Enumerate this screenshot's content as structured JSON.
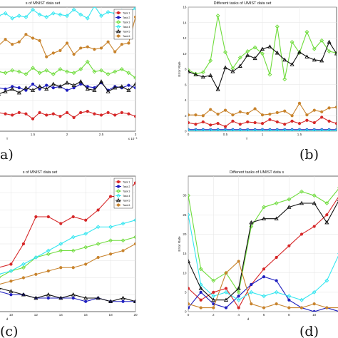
{
  "figure": {
    "panel_labels": [
      "a)",
      "(b)",
      "(c)",
      "(d)"
    ],
    "legend_labels": [
      "Task 1",
      "Task 2",
      "Task 3",
      "Task 4",
      "Task 5",
      "Task 6"
    ],
    "colors": {
      "task1": "#d62728",
      "task2": "#1f1fbf",
      "task3": "#6fdc3c",
      "task4": "#33e6f0",
      "task5": "#111111",
      "task6": "#c8832c"
    }
  },
  "chart_data": [
    {
      "type": "line",
      "title": "s of MNIST data set",
      "xlabel": "T",
      "ylabel": "",
      "x_tick_labels": [
        "1.5",
        "2",
        "2.5",
        "3"
      ],
      "x_exponent_label": "x 10⁻³",
      "x": [
        1.0,
        1.1,
        1.2,
        1.3,
        1.4,
        1.5,
        1.6,
        1.7,
        1.8,
        1.9,
        2.0,
        2.1,
        2.2,
        2.3,
        2.4,
        2.5,
        2.6,
        2.7,
        2.8,
        2.9,
        3.0
      ],
      "xlim": [
        1.0,
        3.0
      ],
      "ylim": [
        0,
        10
      ],
      "legend_position": "top-right",
      "series": [
        {
          "name": "Task 1",
          "marker": "circle",
          "values": [
            1.5,
            1.4,
            1.3,
            1.5,
            1.4,
            1.0,
            1.5,
            1.3,
            1.4,
            1.2,
            1.5,
            1.1,
            1.5,
            1.6,
            1.4,
            1.3,
            1.5,
            1.3,
            1.5,
            1.4,
            1.2
          ]
        },
        {
          "name": "Task 2",
          "marker": "circle",
          "values": [
            3.5,
            3.4,
            3.6,
            3.5,
            3.3,
            3.8,
            3.4,
            3.7,
            3.5,
            3.6,
            3.3,
            3.5,
            3.8,
            3.6,
            3.5,
            3.9,
            3.3,
            3.6,
            3.5,
            3.7,
            3.5
          ]
        },
        {
          "name": "Task 3",
          "marker": "diamond",
          "values": [
            4.8,
            4.7,
            4.9,
            4.8,
            4.6,
            5.1,
            4.7,
            4.9,
            4.6,
            5.0,
            4.8,
            4.7,
            5.0,
            5.6,
            4.8,
            4.9,
            4.6,
            4.8,
            5.0,
            4.7,
            4.3
          ]
        },
        {
          "name": "Task 4",
          "marker": "diamond",
          "values": [
            9.3,
            9.5,
            9.1,
            9.3,
            9.2,
            9.8,
            9.4,
            9.2,
            9.5,
            9.4,
            9.3,
            9.8,
            9.4,
            9.1,
            10.1,
            9.3,
            9.6,
            9.5,
            9.7,
            9.6,
            9.9
          ]
        },
        {
          "name": "Task 5",
          "marker": "triangle",
          "values": [
            3.0,
            3.2,
            3.4,
            3.1,
            3.5,
            3.3,
            3.6,
            3.4,
            3.8,
            3.6,
            3.9,
            3.7,
            4.0,
            3.4,
            3.3,
            4.0,
            3.2,
            3.5,
            3.6,
            3.3,
            3.8
          ]
        },
        {
          "name": "Task 6",
          "marker": "circle",
          "values": [
            6.9,
            7.4,
            7.0,
            7.2,
            7.8,
            7.5,
            7.3,
            6.0,
            6.3,
            6.5,
            7.1,
            6.2,
            6.7,
            6.8,
            6.6,
            6.7,
            7.2,
            6.4,
            7.0,
            7.1,
            9.2
          ]
        }
      ]
    },
    {
      "type": "line",
      "title": "Different tasks of UMIST data set",
      "xlabel": "T",
      "ylabel": "Error Rate",
      "x_tick_labels": [
        "0",
        "0.5",
        "1",
        "1.5"
      ],
      "y_tick_labels": [
        "0",
        "2",
        "4",
        "6",
        "8",
        "10",
        "12",
        "14",
        "16"
      ],
      "x": [
        0,
        0.1,
        0.2,
        0.3,
        0.4,
        0.5,
        0.6,
        0.7,
        0.8,
        0.9,
        1.0,
        1.1,
        1.2,
        1.3,
        1.4,
        1.5,
        1.6,
        1.7,
        1.8,
        1.9,
        2.0
      ],
      "xlim": [
        0,
        2.0
      ],
      "ylim": [
        0,
        16
      ],
      "series": [
        {
          "name": "Task 1",
          "marker": "circle",
          "values": [
            1.1,
            0.9,
            1.2,
            0.8,
            1.0,
            0.6,
            1.3,
            0.9,
            1.2,
            1.1,
            1.0,
            1.5,
            1.2,
            0.9,
            1.3,
            1.0,
            1.4,
            1.1,
            1.8,
            1.3,
            1.0
          ]
        },
        {
          "name": "Task 2",
          "marker": "circle",
          "values": [
            0.2,
            0.2,
            0.2,
            0.2,
            0.2,
            0.2,
            0.2,
            0.2,
            0.2,
            0.2,
            0.2,
            0.2,
            0.2,
            0.2,
            0.2,
            0.2,
            0.2,
            0.2,
            0.2,
            0.2,
            0.2
          ]
        },
        {
          "name": "Task 3",
          "marker": "diamond",
          "values": [
            7.9,
            7.4,
            7.6,
            9.1,
            14.9,
            10.2,
            8.1,
            9.5,
            10.3,
            10.8,
            10.0,
            7.3,
            13.5,
            6.7,
            11.5,
            10.1,
            12.8,
            10.6,
            11.7,
            10.3,
            10.1
          ]
        },
        {
          "name": "Task 4",
          "marker": "diamond",
          "values": [
            0.1,
            0.1,
            0.1,
            0.1,
            0.1,
            0.1,
            0.1,
            0.1,
            0.1,
            0.1,
            0.1,
            0.1,
            0.1,
            0.1,
            0.1,
            0.1,
            0.1,
            0.1,
            0.1,
            0.1,
            0.1
          ]
        },
        {
          "name": "Task 5",
          "marker": "triangle",
          "values": [
            7.7,
            7.3,
            7.0,
            7.2,
            5.4,
            8.2,
            7.7,
            8.4,
            9.8,
            9.4,
            10.6,
            10.9,
            10.1,
            9.2,
            8.6,
            10.2,
            9.6,
            9.2,
            9.1,
            11.5,
            10.0
          ]
        },
        {
          "name": "Task 6",
          "marker": "circle",
          "values": [
            2.1,
            2.1,
            2.0,
            2.8,
            2.2,
            2.7,
            2.1,
            2.5,
            2.3,
            2.9,
            2.1,
            2.2,
            2.4,
            2.6,
            2.0,
            3.6,
            2.1,
            2.7,
            2.5,
            3.0,
            3.1
          ]
        }
      ]
    },
    {
      "type": "line",
      "title": "s of MNIST data set",
      "xlabel": "d",
      "ylabel": "",
      "x_tick_labels": [
        "10",
        "12",
        "14",
        "16",
        "18",
        "20"
      ],
      "x": [
        8,
        9,
        10,
        11,
        12,
        13,
        14,
        15,
        16,
        17,
        18,
        19,
        20
      ],
      "xlim": [
        9,
        20
      ],
      "ylim": [
        0,
        40
      ],
      "legend_position": "top-right",
      "series": [
        {
          "name": "Task 1",
          "marker": "circle",
          "values": [
            13,
            13,
            14,
            20,
            28,
            28,
            26,
            28,
            27,
            30,
            34,
            34,
            38
          ]
        },
        {
          "name": "Task 2",
          "marker": "circle",
          "values": [
            6,
            6,
            5,
            5,
            4,
            4,
            4,
            4,
            3,
            4,
            3,
            3,
            3
          ]
        },
        {
          "name": "Task 3",
          "marker": "diamond",
          "values": [
            9,
            10,
            12,
            13,
            16,
            17,
            18,
            18,
            19,
            20,
            21,
            21,
            22
          ]
        },
        {
          "name": "Task 4",
          "marker": "diamond",
          "values": [
            11,
            11,
            12,
            14,
            16,
            18,
            20,
            22,
            23,
            25,
            25,
            26,
            27
          ]
        },
        {
          "name": "Task 5",
          "marker": "triangle",
          "values": [
            8,
            7,
            6,
            5,
            4,
            5,
            4,
            5,
            4,
            4,
            3,
            4,
            3
          ]
        },
        {
          "name": "Task 6",
          "marker": "circle",
          "values": [
            7,
            8,
            9,
            10,
            11,
            12,
            13,
            13,
            14,
            16,
            17,
            18,
            20
          ]
        }
      ]
    },
    {
      "type": "line",
      "title": "Different tasks of UMIST data s",
      "xlabel": "d",
      "ylabel": "Error Rate",
      "x_tick_labels": [
        "0",
        "2",
        "4",
        "6",
        "8",
        "10"
      ],
      "y_tick_labels": [
        "0",
        "5",
        "10",
        "15",
        "20",
        "25",
        "30"
      ],
      "x": [
        0,
        1,
        2,
        3,
        4,
        5,
        6,
        7,
        8,
        9,
        10,
        11,
        12
      ],
      "xlim": [
        0,
        12
      ],
      "ylim": [
        0,
        35
      ],
      "series": [
        {
          "name": "Task 1",
          "marker": "circle",
          "values": [
            6,
            3,
            5,
            6,
            1,
            7,
            11,
            14,
            17,
            20,
            22,
            25,
            30
          ]
        },
        {
          "name": "Task 2",
          "marker": "circle",
          "values": [
            1,
            5,
            2,
            1,
            4,
            7,
            9,
            8,
            3,
            1,
            0,
            1,
            0
          ]
        },
        {
          "name": "Task 3",
          "marker": "diamond",
          "values": [
            30,
            11,
            8,
            10,
            5,
            22,
            27,
            28,
            29,
            31,
            30,
            28,
            32
          ]
        },
        {
          "name": "Task 4",
          "marker": "diamond",
          "values": [
            25,
            7,
            4,
            5,
            3,
            5,
            4,
            5,
            4,
            3,
            5,
            8,
            15
          ]
        },
        {
          "name": "Task 5",
          "marker": "triangle",
          "values": [
            13,
            6,
            3,
            3,
            6,
            23,
            24,
            24,
            27,
            28,
            28,
            23,
            29
          ]
        },
        {
          "name": "Task 6",
          "marker": "circle",
          "values": [
            2,
            1,
            1,
            10,
            13,
            2,
            1,
            2,
            1,
            1,
            2,
            1,
            1
          ]
        }
      ]
    }
  ]
}
